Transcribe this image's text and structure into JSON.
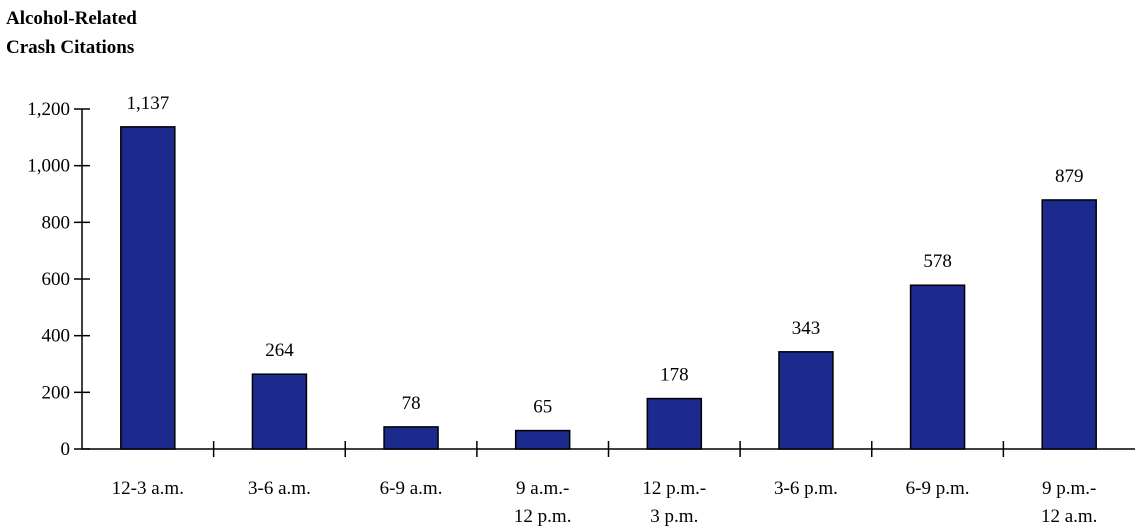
{
  "chart_data": {
    "type": "bar",
    "title": "",
    "ylabel_lines": [
      "Alcohol-Related",
      "Crash Citations"
    ],
    "xlabel": "",
    "categories": [
      [
        "12-3 a.m."
      ],
      [
        "3-6 a.m."
      ],
      [
        "6-9 a.m."
      ],
      [
        "9 a.m.-",
        "12 p.m."
      ],
      [
        "12 p.m.-",
        "3 p.m."
      ],
      [
        "3-6 p.m."
      ],
      [
        "6-9 p.m."
      ],
      [
        "9 p.m.-",
        "12 a.m."
      ]
    ],
    "values": [
      1137,
      264,
      78,
      65,
      178,
      343,
      578,
      879
    ],
    "data_labels": [
      "1,137",
      "264",
      "78",
      "65",
      "178",
      "343",
      "578",
      "879"
    ],
    "ylim": [
      0,
      1200
    ],
    "yticks": [
      0,
      200,
      400,
      600,
      800,
      1000,
      1200
    ],
    "ytick_labels": [
      "0",
      "200",
      "400",
      "600",
      "800",
      "1,000",
      "1,200"
    ],
    "grid": false,
    "legend": "none",
    "bar_color": "#1b2a8c"
  }
}
